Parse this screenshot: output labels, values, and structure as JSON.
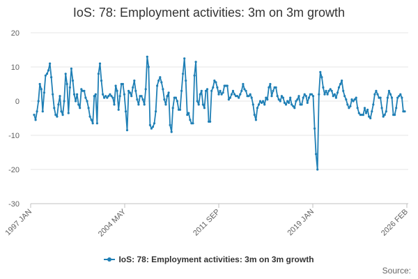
{
  "chart_data": {
    "type": "line",
    "title": "IoS: 78: Employment activities: 3m on 3m growth",
    "series": [
      {
        "name": "IoS: 78: Employment activities: 3m on 3m growth",
        "color": "#1f7fb5",
        "values": [
          -4,
          -5.5,
          -3,
          0,
          5,
          3.5,
          -3,
          2.5,
          7.5,
          8,
          9,
          11,
          7,
          2,
          -2,
          -4,
          -4.5,
          -1,
          1.5,
          -3,
          -4,
          0,
          8,
          5,
          -3.5,
          4,
          9.5,
          6,
          2,
          0,
          2,
          -1,
          -2,
          3.5,
          3,
          3,
          1,
          0,
          -2,
          -4.5,
          -5.5,
          -6.5,
          1.5,
          2,
          -6.5,
          8,
          11,
          6,
          2,
          1,
          1.5,
          1,
          1.5,
          2,
          1.5,
          1,
          -1,
          4.5,
          3,
          -2.5,
          1.5,
          5,
          5,
          2,
          -3,
          -8.5,
          3,
          2.5,
          1.5,
          4,
          6,
          3,
          0.5,
          -1,
          1.5,
          1.5,
          0.5,
          -1,
          3.5,
          13,
          10,
          -7,
          -8,
          -7.5,
          -6.5,
          -3,
          4.5,
          6,
          7,
          5.5,
          3.5,
          0.5,
          -1,
          1.5,
          2.5,
          -7,
          -9,
          -2,
          1,
          1,
          0,
          -2.5,
          -2.5,
          3,
          8,
          12.5,
          6,
          -4,
          -3.5,
          -5.5,
          -6.5,
          -6.5,
          7.5,
          11.5,
          0,
          -1,
          2,
          3,
          -1,
          -2,
          3,
          3.5,
          -6,
          -6,
          3,
          4,
          6,
          5.5,
          4,
          2,
          3,
          2,
          2.5,
          4.5,
          4.5,
          4.5,
          0.5,
          1,
          2,
          3,
          2,
          1.5,
          1.5,
          1,
          2,
          3,
          5,
          3.5,
          3,
          1.5,
          1.5,
          2,
          1,
          -1,
          -4,
          -5.5,
          -2,
          -1,
          0,
          -0.5,
          0,
          -1,
          1,
          0.5,
          4,
          5,
          1.5,
          3,
          4,
          4,
          1.5,
          0.5,
          0,
          1.5,
          1,
          -0.5,
          -1,
          0,
          -0.5,
          1,
          -1,
          -1.5,
          -2,
          0,
          0.5,
          1.5,
          -1,
          -1,
          1,
          2,
          1.5,
          -0.5,
          1,
          2,
          2,
          1.5,
          -8,
          -15.5,
          -20,
          2,
          8.5,
          7,
          4,
          2,
          3,
          2,
          3,
          3.5,
          3,
          1.5,
          2,
          1,
          2.5,
          4,
          5,
          6,
          3,
          1.5,
          0.5,
          -1,
          -2,
          -1.5,
          0.5,
          0,
          0.5,
          1,
          -2,
          -3.5,
          -4,
          -4,
          -4,
          -2,
          -3.5,
          -2.5,
          -4.5,
          -5,
          -3,
          -1,
          2,
          3,
          2,
          1,
          1,
          -2,
          -4.5,
          -4,
          -3,
          1,
          3,
          2,
          1,
          -4,
          -4,
          -2,
          1,
          1.5,
          2,
          1,
          -3,
          -3
        ]
      }
    ],
    "x_tick_labels": [
      "1997 JAN",
      "2004 MAY",
      "2011 SEP",
      "2019 JAN",
      "2026 FEB"
    ],
    "y_ticks": [
      20,
      10,
      0,
      -10,
      -20,
      -30
    ],
    "ylim": [
      -30,
      20
    ],
    "grid": "horizontal",
    "legend_placement": "bottom-center",
    "footer": "Source:"
  }
}
